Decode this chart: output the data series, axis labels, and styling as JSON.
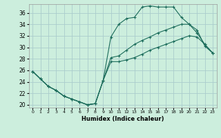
{
  "xlabel": "Humidex (Indice chaleur)",
  "background_color": "#cceedd",
  "grid_color": "#aacccc",
  "line_color": "#1a6b5a",
  "xlim": [
    -0.5,
    23.5
  ],
  "ylim": [
    19.5,
    37.5
  ],
  "xticks": [
    0,
    1,
    2,
    3,
    4,
    5,
    6,
    7,
    8,
    9,
    10,
    11,
    12,
    13,
    14,
    15,
    16,
    17,
    18,
    19,
    20,
    21,
    22,
    23
  ],
  "yticks": [
    20,
    22,
    24,
    26,
    28,
    30,
    32,
    34,
    36
  ],
  "line1_x": [
    0,
    1,
    2,
    3,
    4,
    5,
    6,
    7,
    8,
    9,
    10,
    11,
    12,
    13,
    14,
    15,
    16,
    17,
    18,
    19,
    20,
    21,
    22,
    23
  ],
  "line1_y": [
    25.8,
    24.5,
    23.2,
    22.5,
    21.5,
    21.0,
    20.5,
    20.0,
    20.2,
    24.2,
    31.8,
    34.0,
    35.0,
    35.2,
    37.0,
    37.2,
    37.0,
    37.0,
    37.0,
    35.2,
    34.0,
    33.0,
    30.2,
    29.0
  ],
  "line2_x": [
    0,
    1,
    2,
    3,
    4,
    5,
    6,
    7,
    8,
    9,
    10,
    11,
    12,
    13,
    14,
    15,
    16,
    17,
    18,
    19,
    20,
    21,
    22,
    23
  ],
  "line2_y": [
    25.8,
    24.5,
    23.2,
    22.5,
    21.5,
    21.0,
    20.5,
    20.0,
    20.2,
    24.2,
    28.2,
    28.5,
    29.5,
    30.5,
    31.2,
    31.8,
    32.5,
    33.0,
    33.5,
    34.0,
    34.0,
    32.5,
    30.5,
    29.0
  ],
  "line3_x": [
    0,
    1,
    2,
    3,
    4,
    5,
    6,
    7,
    8,
    9,
    10,
    11,
    12,
    13,
    14,
    15,
    16,
    17,
    18,
    19,
    20,
    21,
    22,
    23
  ],
  "line3_y": [
    25.8,
    24.5,
    23.2,
    22.5,
    21.5,
    21.0,
    20.5,
    20.0,
    20.2,
    24.2,
    27.5,
    27.5,
    27.8,
    28.2,
    28.8,
    29.5,
    30.0,
    30.5,
    31.0,
    31.5,
    32.0,
    31.8,
    30.5,
    29.0
  ]
}
